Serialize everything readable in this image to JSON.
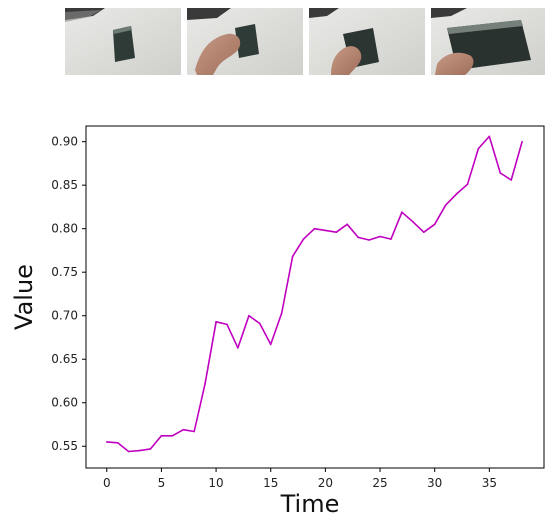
{
  "frames": [
    {
      "name": "frame-1",
      "caption": ""
    },
    {
      "name": "frame-2",
      "caption": ""
    },
    {
      "name": "frame-3",
      "caption": ""
    },
    {
      "name": "frame-4",
      "caption": ""
    }
  ],
  "chart_data": {
    "type": "line",
    "title": "",
    "xlabel": "Time",
    "ylabel": "Value",
    "xlim": [
      -1.9,
      40
    ],
    "ylim": [
      0.525,
      0.918
    ],
    "xticks": [
      0,
      5,
      10,
      15,
      20,
      25,
      30,
      35
    ],
    "yticks": [
      0.55,
      0.6,
      0.65,
      0.7,
      0.75,
      0.8,
      0.85,
      0.9
    ],
    "ytick_labels": [
      "0.55",
      "0.60",
      "0.65",
      "0.70",
      "0.75",
      "0.80",
      "0.85",
      "0.90"
    ],
    "grid": false,
    "legend": "none",
    "series": [
      {
        "color": "#c000c0",
        "x": [
          0,
          1,
          2,
          3,
          4,
          5,
          6,
          7,
          8,
          9,
          10,
          11,
          12,
          13,
          14,
          15,
          16,
          17,
          18,
          19,
          20,
          21,
          22,
          23,
          24,
          25,
          26,
          27,
          28,
          29,
          30,
          31,
          32,
          33,
          34,
          35,
          36,
          37,
          38
        ],
        "y": [
          0.555,
          0.554,
          0.544,
          0.545,
          0.547,
          0.562,
          0.562,
          0.569,
          0.567,
          0.622,
          0.693,
          0.69,
          0.663,
          0.7,
          0.691,
          0.667,
          0.703,
          0.768,
          0.788,
          0.8,
          0.798,
          0.796,
          0.805,
          0.79,
          0.787,
          0.791,
          0.788,
          0.819,
          0.808,
          0.796,
          0.805,
          0.827,
          0.84,
          0.851,
          0.892,
          0.906,
          0.864,
          0.856,
          0.9
        ]
      }
    ]
  }
}
